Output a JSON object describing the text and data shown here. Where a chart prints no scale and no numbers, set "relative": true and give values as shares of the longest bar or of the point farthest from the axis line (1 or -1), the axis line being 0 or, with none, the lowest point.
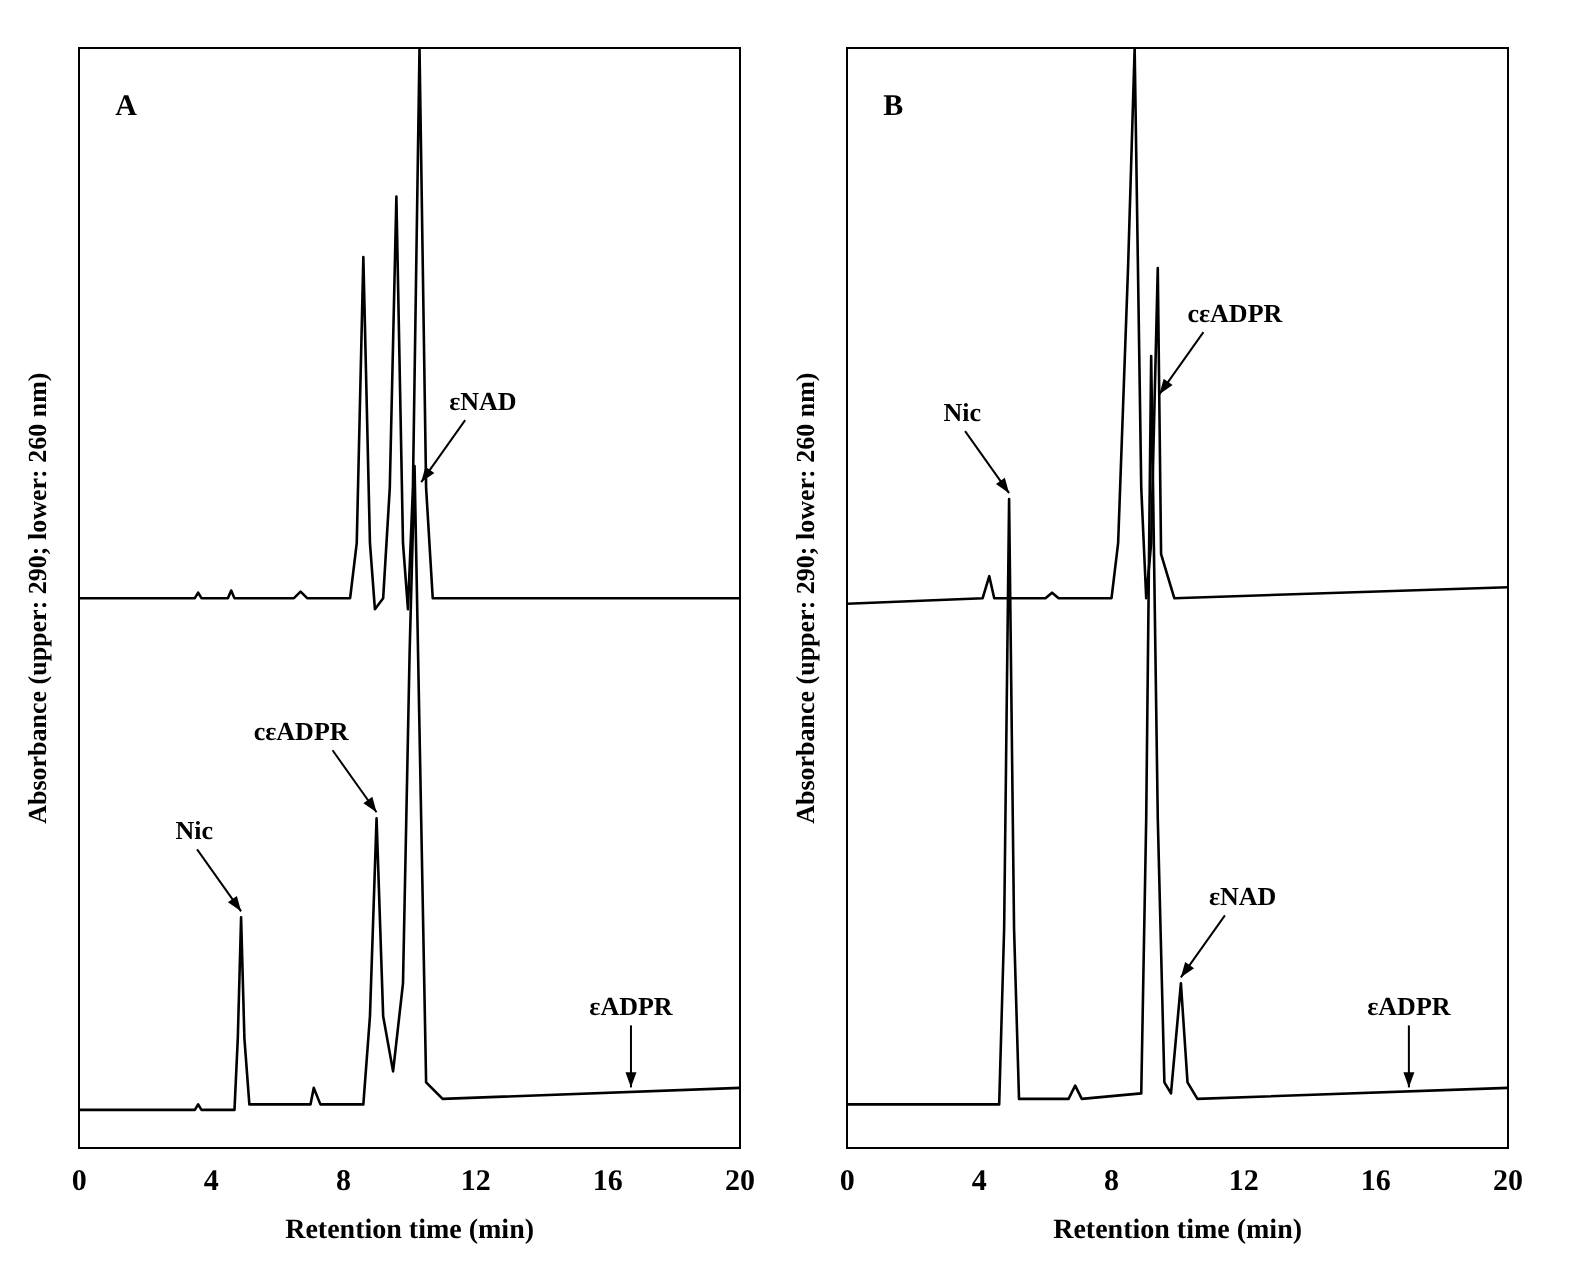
{
  "chart_data": [
    {
      "type": "line",
      "title": "A",
      "xlabel": "Retention time (min)",
      "ylabel": "Absorbance (upper: 290; lower: 260 nm)",
      "relative": true,
      "xlim": [
        0,
        20
      ],
      "xticks": [
        0,
        4,
        8,
        12,
        16,
        20
      ],
      "grid": false,
      "legend": false,
      "marker": "none",
      "line_style": "solid",
      "annotations": [
        {
          "text": "Nic",
          "x": 4.9,
          "y": 0.21
        },
        {
          "text": "cεADPR",
          "x": 9.0,
          "y": 0.3
        },
        {
          "text": "εNAD",
          "x": 10.35,
          "y": 0.6
        },
        {
          "text": "εADPR",
          "x": 16.7,
          "y": 0.05
        }
      ],
      "series": [
        {
          "color": "#000000",
          "x": [
            0,
            3.5,
            3.6,
            3.7,
            4.5,
            4.6,
            4.7,
            6.5,
            6.7,
            6.9,
            8.2,
            8.4,
            8.6,
            8.8,
            8.95,
            9.2,
            9.4,
            9.6,
            9.8,
            9.95,
            10.1,
            10.3,
            10.5,
            10.7,
            20
          ],
          "values": [
            0.5,
            0.5,
            0.505,
            0.5,
            0.5,
            0.507,
            0.5,
            0.5,
            0.506,
            0.5,
            0.5,
            0.55,
            0.81,
            0.55,
            0.49,
            0.5,
            0.6,
            0.865,
            0.55,
            0.49,
            0.6,
            1.0,
            0.6,
            0.5,
            0.5
          ]
        },
        {
          "color": "#000000",
          "x": [
            0,
            3.5,
            3.6,
            3.7,
            4.7,
            4.8,
            4.9,
            5.0,
            5.15,
            7.0,
            7.1,
            7.3,
            8.6,
            8.8,
            9.0,
            9.2,
            9.5,
            9.8,
            10.0,
            10.15,
            10.35,
            10.5,
            11,
            20
          ],
          "values": [
            0.035,
            0.035,
            0.04,
            0.035,
            0.035,
            0.1,
            0.21,
            0.1,
            0.04,
            0.04,
            0.055,
            0.04,
            0.04,
            0.12,
            0.3,
            0.12,
            0.07,
            0.15,
            0.45,
            0.62,
            0.3,
            0.06,
            0.045,
            0.055
          ]
        }
      ]
    },
    {
      "type": "line",
      "title": "B",
      "xlabel": "Retention time (min)",
      "ylabel": "Absorbance (upper: 290; lower: 260 nm)",
      "relative": true,
      "xlim": [
        0,
        20
      ],
      "xticks": [
        0,
        4,
        8,
        12,
        16,
        20
      ],
      "grid": false,
      "legend": false,
      "marker": "none",
      "line_style": "solid",
      "annotations": [
        {
          "text": "Nic",
          "x": 4.9,
          "y": 0.59
        },
        {
          "text": "cεADPR",
          "x": 9.45,
          "y": 0.68
        },
        {
          "text": "εNAD",
          "x": 10.1,
          "y": 0.15
        },
        {
          "text": "εADPR",
          "x": 17,
          "y": 0.05
        }
      ],
      "series": [
        {
          "color": "#000000",
          "x": [
            0,
            4.1,
            4.3,
            4.45,
            6.0,
            6.2,
            6.4,
            8.0,
            8.2,
            8.5,
            8.7,
            8.9,
            9.05,
            9.2,
            9.4,
            9.5,
            9.7,
            9.9,
            20
          ],
          "values": [
            0.495,
            0.5,
            0.52,
            0.5,
            0.5,
            0.505,
            0.5,
            0.5,
            0.55,
            0.8,
            1.0,
            0.6,
            0.5,
            0.55,
            0.8,
            0.54,
            0.52,
            0.5,
            0.51
          ]
        },
        {
          "color": "#000000",
          "x": [
            0,
            4.6,
            4.75,
            4.9,
            5.05,
            5.2,
            6.7,
            6.9,
            7.1,
            8.9,
            9.05,
            9.2,
            9.4,
            9.6,
            9.8,
            9.95,
            10.1,
            10.3,
            10.6,
            20
          ],
          "values": [
            0.04,
            0.04,
            0.2,
            0.59,
            0.2,
            0.045,
            0.045,
            0.057,
            0.045,
            0.05,
            0.3,
            0.72,
            0.3,
            0.06,
            0.05,
            0.1,
            0.15,
            0.06,
            0.045,
            0.055
          ]
        }
      ]
    }
  ]
}
